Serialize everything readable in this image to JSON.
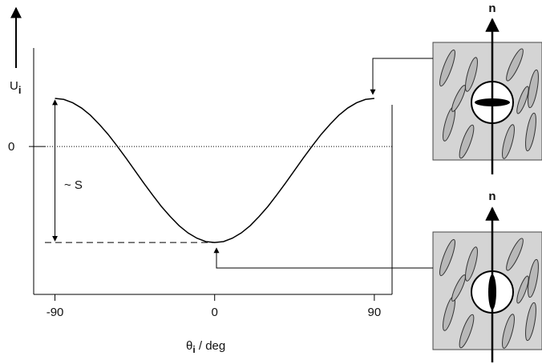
{
  "chart_data": {
    "type": "line",
    "x": [
      -90,
      -85,
      -80,
      -75,
      -70,
      -65,
      -60,
      -55,
      -50,
      -45,
      -40,
      -35,
      -30,
      -25,
      -20,
      -15,
      -10,
      -5,
      0,
      5,
      10,
      15,
      20,
      25,
      30,
      35,
      40,
      45,
      50,
      55,
      60,
      65,
      70,
      75,
      80,
      85,
      90
    ],
    "series": [
      {
        "color": "#000000",
        "values": [
          1,
          0.98,
          0.91,
          0.8,
          0.65,
          0.46,
          0.25,
          0.01,
          -0.24,
          -0.5,
          -0.76,
          -1.01,
          -1.25,
          -1.46,
          -1.65,
          -1.8,
          -1.91,
          -1.98,
          -2,
          -1.98,
          -1.91,
          -1.8,
          -1.65,
          -1.46,
          -1.25,
          -1.01,
          -0.76,
          -0.5,
          -0.24,
          0.01,
          0.25,
          0.46,
          0.65,
          0.8,
          0.91,
          0.98,
          1
        ]
      }
    ],
    "xlim": [
      -102,
      100
    ],
    "ylim": [
      -3.08,
      2.05
    ],
    "xticks": [
      -90,
      0,
      90
    ],
    "yticks": [
      0
    ],
    "y_label": {
      "symbol": "U",
      "subscript": "i"
    },
    "x_label": {
      "symbol": "θ",
      "subscript": "i",
      "unit": " / deg"
    },
    "annotation": "~ S"
  },
  "diagrams": [
    {
      "label": "n"
    },
    {
      "label": "n"
    }
  ]
}
